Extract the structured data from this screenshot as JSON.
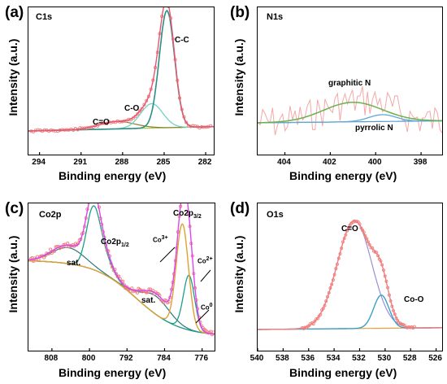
{
  "chart_data": [
    {
      "panel": "(a)",
      "title": "C1s",
      "type": "line",
      "xlabel": "Binding energy (eV)",
      "ylabel": "Intensity (a.u.)",
      "x_ticks": [
        "294",
        "291",
        "288",
        "285",
        "282"
      ],
      "xlim": [
        294.8,
        281.3
      ],
      "annotations": [
        "C-C",
        "C-O",
        "C=O"
      ],
      "peaks": [
        {
          "name": "C-C",
          "center": 284.8,
          "height": 0.72
        },
        {
          "name": "C-O",
          "center": 285.9,
          "height": 0.15
        },
        {
          "name": "C=O",
          "center": 288.4,
          "height": 0.045
        }
      ],
      "colors": {
        "data": "#f08080",
        "envelope": "#e8556f",
        "cc": "#2a8f86",
        "co": "#6fd4c4",
        "c_o": "#8a7a2a",
        "baseline": "#a9c940"
      }
    },
    {
      "panel": "(b)",
      "title": "N1s",
      "type": "line",
      "xlabel": "Binding energy (eV)",
      "ylabel": "Intensity (a.u.)",
      "x_ticks": [
        "404",
        "402",
        "400",
        "398"
      ],
      "xlim": [
        405.2,
        397.0
      ],
      "annotations": [
        "graphitic N",
        "pyrrolic N"
      ],
      "peaks": [
        {
          "name": "graphitic N",
          "center": 401.0,
          "height": 0.2
        },
        {
          "name": "pyrrolic N",
          "center": 399.7,
          "height": 0.07
        }
      ],
      "colors": {
        "data": "#f4a8a8",
        "graphitic": "#6ab04c",
        "pyrrolic": "#5fa8d3",
        "baseline": "#5b9bd5"
      }
    },
    {
      "panel": "(c)",
      "title": "Co2p",
      "type": "line",
      "xlabel": "Binding energy (eV)",
      "ylabel": "Intensity (a.u.)",
      "x_ticks": [
        "808",
        "800",
        "792",
        "784",
        "776"
      ],
      "xlim": [
        813,
        773
      ],
      "annotations": [
        "Co2p1/2",
        "Co2p3/2",
        "sat.",
        "sat.",
        "Co3+",
        "Co2+",
        "Co0"
      ],
      "colors": {
        "data": "#f08080",
        "fit": "#d946ef",
        "co3": "#e0a030",
        "co2": "#1f9e8a",
        "sat": "#2a7a7a",
        "baseline": "#555555"
      }
    },
    {
      "panel": "(d)",
      "title": "O1s",
      "type": "line",
      "xlabel": "Binding energy (eV)",
      "ylabel": "Intensity (a.u.)",
      "x_ticks": [
        "540",
        "538",
        "536",
        "534",
        "532",
        "530",
        "528",
        "526"
      ],
      "xlim": [
        540,
        525.4
      ],
      "annotations": [
        "C=O",
        "Co-O"
      ],
      "peaks": [
        {
          "name": "C=O",
          "center": 532.4,
          "height": 0.78
        },
        {
          "name": "Co-O",
          "center": 530.3,
          "height": 0.24
        }
      ],
      "colors": {
        "data": "#f08080",
        "envelope": "#9b8fd4",
        "co": "#3aa0c8",
        "baseline": "#e8a23a"
      }
    }
  ],
  "labels": {
    "a": "(a)",
    "b": "(b)",
    "c": "(c)",
    "d": "(d)",
    "a_title": "C1s",
    "b_title": "N1s",
    "c_title": "Co2p",
    "d_title": "O1s",
    "ylabel": "Intensity (a.u.)",
    "xlabel": "Binding energy (eV)",
    "a_ticks": [
      "294",
      "291",
      "288",
      "285",
      "282"
    ],
    "b_ticks": [
      "404",
      "402",
      "400",
      "398"
    ],
    "c_ticks": [
      "808",
      "800",
      "792",
      "784",
      "776"
    ],
    "d_ticks": [
      "540",
      "538",
      "536",
      "534",
      "532",
      "530",
      "528",
      "526"
    ],
    "a_ann": {
      "cc": "C-C",
      "co": "C-O",
      "c_o": "C=O"
    },
    "b_ann": {
      "gn": "graphitic N",
      "pn": "pyrrolic N"
    },
    "c_ann": {
      "p12": "Co2p",
      "p12_sub": "1/2",
      "p32": "Co2p",
      "p32_sub": "3/2",
      "sat1": "sat.",
      "sat2": "sat.",
      "co3": "Co",
      "co3_sup": "3+",
      "co2": "Co",
      "co2_sup": "2+",
      "co0": "Co",
      "co0_sup": "0"
    },
    "d_ann": {
      "c_o": "C=O",
      "coo": "Co-O"
    }
  }
}
